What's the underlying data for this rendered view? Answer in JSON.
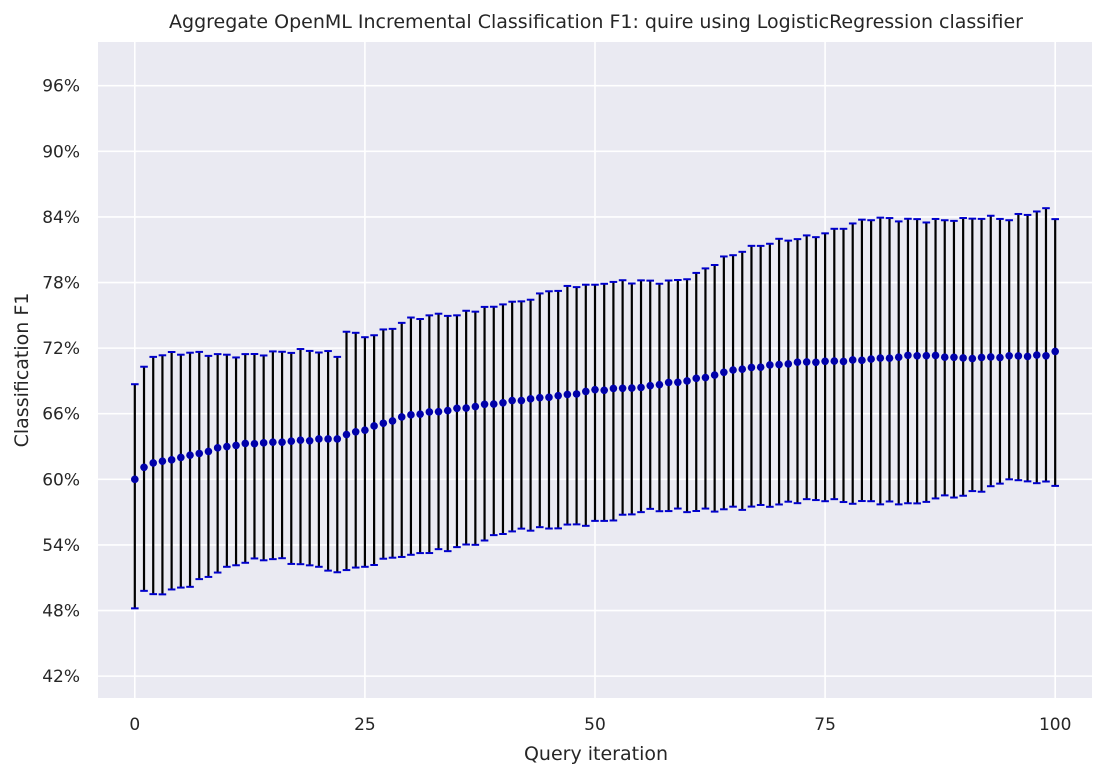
{
  "chart_data": {
    "type": "errorbar",
    "title": "Aggregate OpenML Incremental Classification F1: quire using LogisticRegression classifier",
    "xlabel": "Query iteration",
    "ylabel": "Classification F1",
    "xlim": [
      -4,
      104
    ],
    "ylim": [
      0.4,
      1.0
    ],
    "xticks": [
      0,
      25,
      50,
      75,
      100
    ],
    "yticks": [
      0.42,
      0.48,
      0.54,
      0.6,
      0.66,
      0.72,
      0.78,
      0.84,
      0.9,
      0.96
    ],
    "ytick_labels": [
      "42%",
      "48%",
      "54%",
      "60%",
      "66%",
      "72%",
      "78%",
      "84%",
      "90%",
      "96%"
    ],
    "grid": true,
    "colors": {
      "background": "#eaeaf2",
      "grid": "#ffffff",
      "marker": "#0000aa",
      "cap": "#0000cc",
      "errorbar": "#000000"
    },
    "anchors": {
      "x": [
        0,
        1,
        2,
        5,
        10,
        15,
        20,
        22,
        23,
        25,
        30,
        35,
        40,
        45,
        50,
        55,
        60,
        65,
        70,
        75,
        80,
        85,
        90,
        95,
        99,
        100
      ],
      "mean": [
        0.6,
        0.611,
        0.615,
        0.62,
        0.63,
        0.634,
        0.637,
        0.637,
        0.641,
        0.645,
        0.659,
        0.665,
        0.67,
        0.675,
        0.682,
        0.684,
        0.69,
        0.7,
        0.705,
        0.708,
        0.71,
        0.713,
        0.711,
        0.713,
        0.713,
        0.717
      ],
      "upper": [
        0.687,
        0.703,
        0.712,
        0.714,
        0.714,
        0.717,
        0.716,
        0.712,
        0.735,
        0.73,
        0.748,
        0.75,
        0.76,
        0.772,
        0.778,
        0.782,
        0.783,
        0.805,
        0.82,
        0.825,
        0.837,
        0.838,
        0.839,
        0.837,
        0.848,
        0.838
      ],
      "lower": [
        0.482,
        0.498,
        0.495,
        0.501,
        0.52,
        0.527,
        0.52,
        0.515,
        0.517,
        0.52,
        0.531,
        0.538,
        0.55,
        0.555,
        0.562,
        0.57,
        0.57,
        0.575,
        0.577,
        0.58,
        0.58,
        0.578,
        0.585,
        0.6,
        0.598,
        0.594
      ]
    },
    "jitter": {
      "mean": 0.0012,
      "upper": 0.0035,
      "lower": 0.0035
    }
  }
}
